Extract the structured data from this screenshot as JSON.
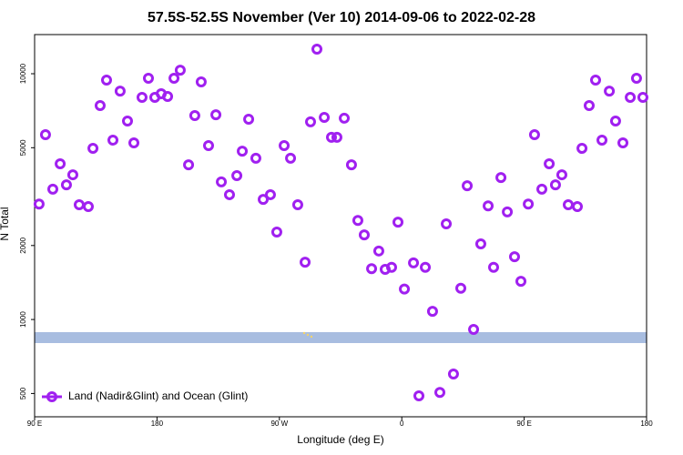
{
  "chart_data": {
    "type": "scatter",
    "title": "57.5S-52.5S November (Ver 10)   2014-09-06 to 2022-02-28",
    "xlabel": "Longitude (deg E)",
    "ylabel": "N Total",
    "log_y": true,
    "legend": "bottom-left",
    "xlim": [
      90,
      540
    ],
    "xticks": [
      {
        "value": 90,
        "label": "90 E"
      },
      {
        "value": 180,
        "label": "180"
      },
      {
        "value": 270,
        "label": "90 W"
      },
      {
        "value": 360,
        "label": "0"
      },
      {
        "value": 450,
        "label": "90 E"
      },
      {
        "value": 540,
        "label": "180"
      }
    ],
    "ylim": [
      402,
      14430
    ],
    "yticks": [
      500,
      1000,
      2000,
      5000,
      10000
    ],
    "series": [
      {
        "name": "Land (Nadir&Glint) and Ocean (Glint)",
        "color": "#a020f0",
        "x": [
          93.3,
          98,
          103.4,
          108.8,
          113.4,
          118.1,
          122.8,
          129.5,
          132.9,
          138.2,
          142.9,
          147.6,
          152.9,
          158.3,
          163,
          169,
          173.7,
          178.4,
          183.1,
          187.8,
          192.5,
          197.1,
          203.2,
          207.8,
          212.5,
          217.9,
          223.3,
          227.3,
          233.3,
          238.7,
          242.7,
          247.4,
          252.7,
          258.1,
          263.4,
          268.1,
          273.5,
          278.2,
          283.5,
          288.9,
          292.9,
          297.6,
          303,
          308.3,
          312.3,
          317.7,
          323,
          327.7,
          332.4,
          337.8,
          343.1,
          347.8,
          352.5,
          357.2,
          361.9,
          368.6,
          372.6,
          377.3,
          382.6,
          388,
          392.7,
          398,
          403.4,
          408.1,
          412.8,
          418.1,
          423.5,
          427.5,
          432.9,
          437.6,
          442.9,
          447.6,
          453,
          457.6,
          463,
          468.4,
          473,
          477.7,
          482.4,
          489.1,
          492.5,
          497.8,
          502.5,
          507.2,
          512.6,
          517.2,
          522.6,
          528,
          532.6,
          537.3
        ],
        "values": [
          2950,
          5650,
          3390,
          4300,
          3530,
          3880,
          2930,
          2880,
          4970,
          7420,
          9420,
          5370,
          8500,
          6420,
          5230,
          8010,
          9580,
          8010,
          8290,
          8080,
          9580,
          10340,
          4260,
          6760,
          9260,
          5100,
          6810,
          3630,
          3220,
          3850,
          4840,
          6530,
          4530,
          3080,
          3220,
          2270,
          5100,
          4530,
          2930,
          1710,
          6370,
          12590,
          6640,
          5510,
          5510,
          6590,
          4260,
          2530,
          2210,
          1610,
          1900,
          1600,
          1630,
          2490,
          1330,
          1700,
          489,
          1630,
          1080,
          505,
          2450,
          600,
          1340,
          3500,
          911,
          2030,
          2900,
          1630,
          3780,
          2740,
          1800,
          1430,
          2950,
          5650,
          3390,
          4300,
          3530,
          3880,
          2930,
          2880,
          4970,
          7420,
          9420,
          5370,
          8500,
          6420,
          5230,
          8010,
          9580,
          8010
        ]
      }
    ]
  }
}
